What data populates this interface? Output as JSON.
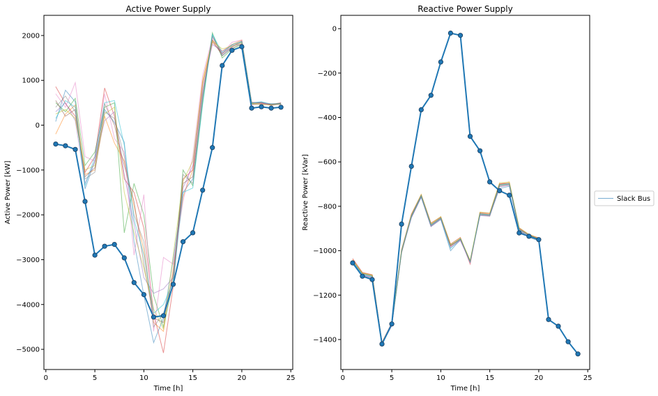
{
  "chart_data": [
    {
      "type": "line",
      "title": "Active Power Supply",
      "xlabel": "Time [h]",
      "ylabel": "Active Power [kW]",
      "xlim": [
        -0.2,
        25.2
      ],
      "ylim": [
        -5450,
        2450
      ],
      "xticks": [
        0,
        5,
        10,
        15,
        20,
        25
      ],
      "yticks": [
        -5000,
        -4000,
        -3000,
        -2000,
        -1000,
        0,
        1000,
        2000
      ],
      "ytick_labels": [
        "−5000",
        "−4000",
        "−3000",
        "−2000",
        "−1000",
        "0",
        "1000",
        "2000"
      ],
      "grid": false,
      "main_series": {
        "name": "Slack Bus",
        "color": "#1f77b4",
        "x": [
          1,
          2,
          3,
          4,
          5,
          6,
          7,
          8,
          9,
          10,
          11,
          12,
          13,
          14,
          15,
          16,
          17,
          18,
          19,
          20,
          21,
          22,
          23,
          24
        ],
        "y": [
          -420,
          -460,
          -540,
          -1700,
          -2900,
          -2700,
          -2660,
          -2960,
          -3510,
          -3780,
          -4280,
          -4250,
          -3550,
          -2600,
          -2400,
          -1450,
          -500,
          1330,
          1670,
          1750,
          380,
          410,
          380,
          400
        ]
      },
      "background_series": [
        {
          "color": "#1f77b4",
          "y": [
            80,
            780,
            520,
            -1420,
            -800,
            350,
            60,
            -380,
            -2600,
            -3800,
            -4850,
            -4300,
            -3000,
            -1500,
            -1200,
            600,
            2000,
            1550,
            1750,
            1850,
            500,
            520,
            460,
            490
          ]
        },
        {
          "color": "#ff7f0e",
          "y": [
            -200,
            250,
            450,
            -1100,
            -1000,
            200,
            -400,
            -800,
            -1800,
            -2800,
            -4400,
            -4600,
            -3200,
            -1600,
            -1000,
            1000,
            1900,
            1650,
            1800,
            1900,
            480,
            500,
            450,
            480
          ]
        },
        {
          "color": "#2ca02c",
          "y": [
            500,
            300,
            600,
            -900,
            -600,
            400,
            500,
            -2400,
            -1300,
            -2000,
            -3800,
            -4500,
            -3500,
            -1000,
            -1350,
            500,
            2060,
            1500,
            1700,
            1800,
            470,
            480,
            470,
            470
          ]
        },
        {
          "color": "#d62728",
          "y": [
            860,
            480,
            200,
            -1050,
            -700,
            830,
            200,
            -1200,
            -1500,
            -2300,
            -4200,
            -5080,
            -3600,
            -1200,
            -1000,
            900,
            1850,
            1600,
            1750,
            1880,
            510,
            490,
            460,
            500
          ]
        },
        {
          "color": "#9467bd",
          "y": [
            300,
            500,
            100,
            -1300,
            -800,
            100,
            300,
            -1100,
            -2200,
            -3400,
            -3750,
            -3650,
            -3400,
            -1400,
            -900,
            800,
            1800,
            1650,
            1780,
            1800,
            490,
            510,
            440,
            470
          ]
        },
        {
          "color": "#8c564b",
          "y": [
            550,
            200,
            350,
            -1150,
            -950,
            480,
            0,
            -900,
            -1700,
            -3100,
            -4300,
            -4400,
            -3300,
            -1300,
            -1150,
            700,
            1900,
            1550,
            1720,
            1820,
            470,
            470,
            450,
            480
          ]
        },
        {
          "color": "#e377c2",
          "y": [
            700,
            400,
            950,
            -700,
            -800,
            700,
            -300,
            -600,
            -2900,
            -1550,
            -4600,
            -2950,
            -3100,
            -1700,
            -700,
            1100,
            1950,
            1600,
            1850,
            1900,
            450,
            480,
            470,
            460
          ]
        },
        {
          "color": "#7f7f7f",
          "y": [
            400,
            650,
            300,
            -1200,
            -1050,
            300,
            150,
            -700,
            -2000,
            -2600,
            -4500,
            -4200,
            -3400,
            -1100,
            -1300,
            650,
            1980,
            1580,
            1800,
            1860,
            500,
            500,
            480,
            490
          ]
        },
        {
          "color": "#bcbd22",
          "y": [
            250,
            350,
            150,
            -1000,
            -900,
            250,
            400,
            -1500,
            -2400,
            -3200,
            -4100,
            -4550,
            -2900,
            -1250,
            -800,
            950,
            1870,
            1700,
            1760,
            1840,
            480,
            460,
            450,
            470
          ]
        },
        {
          "color": "#17becf",
          "y": [
            150,
            550,
            400,
            -1350,
            -700,
            500,
            550,
            -450,
            -2100,
            -2900,
            -4200,
            -4000,
            -3500,
            -1500,
            -1400,
            450,
            2030,
            1620,
            1790,
            1870,
            490,
            520,
            470,
            480
          ]
        }
      ]
    },
    {
      "type": "line",
      "title": "Reactive Power Supply",
      "xlabel": "Time [h]",
      "ylabel": "Reactive Power [kVar]",
      "xlim": [
        -0.2,
        25.2
      ],
      "ylim": [
        -1535,
        60
      ],
      "xticks": [
        0,
        5,
        10,
        15,
        20,
        25
      ],
      "yticks": [
        -1400,
        -1200,
        -1000,
        -800,
        -600,
        -400,
        -200,
        0
      ],
      "ytick_labels": [
        "−1400",
        "−1200",
        "−1000",
        "−800",
        "−600",
        "−400",
        "−200",
        "0"
      ],
      "grid": false,
      "main_series": {
        "name": "Slack Bus",
        "color": "#1f77b4",
        "x": [
          1,
          2,
          3,
          4,
          5,
          6,
          7,
          8,
          9,
          10,
          11,
          12,
          13,
          14,
          15,
          16,
          17,
          18,
          19,
          20,
          21,
          22,
          23,
          24
        ],
        "y": [
          -1055,
          -1115,
          -1130,
          -1420,
          -1330,
          -880,
          -620,
          -365,
          -300,
          -150,
          -20,
          -30,
          -485,
          -550,
          -690,
          -730,
          -750,
          -920,
          -935,
          -950,
          -1310,
          -1340,
          -1410,
          -1465
        ]
      },
      "background_series": [
        {
          "color": "#1f77b4",
          "y": [
            -1060,
            -1110,
            -1120,
            -1415,
            -1335,
            -1000,
            -850,
            -760,
            -890,
            -860,
            -1000,
            -950,
            -1050,
            -840,
            -840,
            -720,
            -710,
            -910,
            -940,
            -955
          ]
        },
        {
          "color": "#ff7f0e",
          "y": [
            -1040,
            -1100,
            -1110,
            -1415,
            -1330,
            -1010,
            -840,
            -750,
            -880,
            -850,
            -980,
            -945,
            -1045,
            -830,
            -835,
            -700,
            -690,
            -900,
            -930,
            -945
          ]
        },
        {
          "color": "#2ca02c",
          "y": [
            -1050,
            -1105,
            -1115,
            -1418,
            -1328,
            -1005,
            -845,
            -755,
            -885,
            -855,
            -975,
            -950,
            -1050,
            -835,
            -840,
            -705,
            -700,
            -905,
            -932,
            -948
          ]
        },
        {
          "color": "#d62728",
          "y": [
            -1035,
            -1098,
            -1108,
            -1412,
            -1325,
            -995,
            -835,
            -748,
            -875,
            -848,
            -970,
            -940,
            -1060,
            -828,
            -832,
            -698,
            -698,
            -898,
            -928,
            -942
          ]
        },
        {
          "color": "#9467bd",
          "y": [
            -1055,
            -1112,
            -1122,
            -1420,
            -1338,
            -1008,
            -852,
            -758,
            -892,
            -858,
            -985,
            -955,
            -1048,
            -842,
            -845,
            -712,
            -706,
            -912,
            -936,
            -952
          ]
        },
        {
          "color": "#8c564b",
          "y": [
            -1045,
            -1102,
            -1112,
            -1416,
            -1332,
            -1002,
            -842,
            -752,
            -882,
            -852,
            -978,
            -948,
            -1052,
            -832,
            -838,
            -702,
            -696,
            -902,
            -930,
            -946
          ]
        },
        {
          "color": "#e377c2",
          "y": [
            -1050,
            -1108,
            -1118,
            -1419,
            -1334,
            -1004,
            -846,
            -754,
            -886,
            -856,
            -982,
            -952,
            -1056,
            -836,
            -842,
            -708,
            -702,
            -906,
            -934,
            -950
          ]
        },
        {
          "color": "#7f7f7f",
          "y": [
            -1058,
            -1114,
            -1124,
            -1421,
            -1336,
            -1006,
            -848,
            -756,
            -888,
            -854,
            -976,
            -946,
            -1046,
            -838,
            -844,
            -710,
            -704,
            -908,
            -938,
            -954
          ]
        },
        {
          "color": "#bcbd22",
          "y": [
            -1042,
            -1100,
            -1110,
            -1414,
            -1328,
            -998,
            -838,
            -746,
            -878,
            -846,
            -972,
            -942,
            -1044,
            -826,
            -830,
            -694,
            -692,
            -896,
            -926,
            -944
          ]
        },
        {
          "color": "#17becf",
          "y": [
            -1048,
            -1106,
            -1116,
            -1417,
            -1333,
            -1003,
            -844,
            -753,
            -884,
            -853,
            -990,
            -947,
            -1051,
            -834,
            -839,
            -704,
            -699,
            -904,
            -931,
            -949
          ]
        }
      ]
    }
  ],
  "legend": {
    "placement": "right",
    "entries": [
      {
        "label": "Slack Bus",
        "color": "#1f77b4"
      }
    ]
  }
}
